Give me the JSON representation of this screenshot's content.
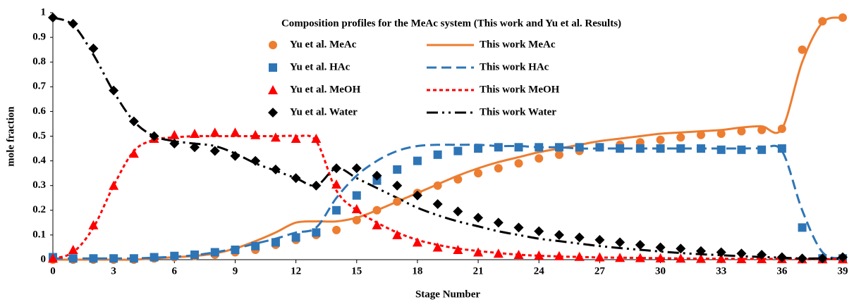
{
  "chart_data": {
    "type": "line",
    "title": "Composition profiles for the MeAc system (This work and Yu et al. Results)",
    "xlabel": "Stage Number",
    "ylabel": "mole fraction",
    "x": [
      0,
      1,
      2,
      3,
      4,
      5,
      6,
      7,
      8,
      9,
      10,
      11,
      12,
      13,
      14,
      15,
      16,
      17,
      18,
      19,
      20,
      21,
      22,
      23,
      24,
      25,
      26,
      27,
      28,
      29,
      30,
      31,
      32,
      33,
      34,
      35,
      36,
      37,
      38,
      39
    ],
    "xlim": [
      0,
      39
    ],
    "xticks": [
      0,
      3,
      6,
      9,
      12,
      15,
      18,
      21,
      24,
      27,
      30,
      33,
      36,
      39
    ],
    "ylim": [
      0,
      1
    ],
    "yticks": [
      0,
      0.1,
      0.2,
      0.3,
      0.4,
      0.5,
      0.6,
      0.7,
      0.8,
      0.9,
      1
    ],
    "grid": false,
    "legend": "top",
    "series": [
      {
        "name": "Yu et al. MeAc",
        "color": "#ed7d31",
        "style": "circle",
        "values": [
          0,
          0,
          0,
          0,
          0,
          0.005,
          0.01,
          0.015,
          0.02,
          0.03,
          0.04,
          0.06,
          0.08,
          0.1,
          0.12,
          0.16,
          0.2,
          0.235,
          0.27,
          0.3,
          0.325,
          0.35,
          0.37,
          0.39,
          0.41,
          0.425,
          0.44,
          0.455,
          0.465,
          0.475,
          0.485,
          0.495,
          0.505,
          0.51,
          0.52,
          0.525,
          0.53,
          0.85,
          0.965,
          0.98
        ]
      },
      {
        "name": "This work MeAc",
        "color": "#ed7d31",
        "style": "solid",
        "values": [
          0,
          0,
          0,
          0,
          0,
          0.005,
          0.01,
          0.015,
          0.025,
          0.045,
          0.075,
          0.11,
          0.15,
          0.155,
          0.155,
          0.17,
          0.2,
          0.235,
          0.27,
          0.305,
          0.34,
          0.37,
          0.395,
          0.415,
          0.435,
          0.45,
          0.465,
          0.48,
          0.49,
          0.5,
          0.51,
          0.515,
          0.52,
          0.525,
          0.535,
          0.54,
          0.53,
          0.8,
          0.96,
          0.98
        ]
      },
      {
        "name": "Yu et al. HAc",
        "color": "#2e75b6",
        "style": "square",
        "values": [
          0.01,
          0.005,
          0.005,
          0.005,
          0.005,
          0.01,
          0.015,
          0.02,
          0.03,
          0.04,
          0.055,
          0.07,
          0.09,
          0.11,
          0.2,
          0.26,
          0.32,
          0.365,
          0.4,
          0.425,
          0.44,
          0.45,
          0.455,
          0.455,
          0.455,
          0.455,
          0.455,
          0.455,
          0.45,
          0.45,
          0.45,
          0.45,
          0.45,
          0.445,
          0.445,
          0.445,
          0.45,
          0.13,
          0.005,
          0.005
        ]
      },
      {
        "name": "This work HAc",
        "color": "#2e75b6",
        "style": "dashed",
        "values": [
          0.005,
          0.005,
          0.005,
          0.005,
          0.005,
          0.008,
          0.012,
          0.018,
          0.03,
          0.045,
          0.065,
          0.085,
          0.11,
          0.13,
          0.25,
          0.34,
          0.4,
          0.44,
          0.46,
          0.465,
          0.465,
          0.465,
          0.46,
          0.46,
          0.455,
          0.455,
          0.45,
          0.45,
          0.45,
          0.45,
          0.45,
          0.45,
          0.45,
          0.45,
          0.45,
          0.45,
          0.44,
          0.2,
          0.03,
          0.005
        ]
      },
      {
        "name": "Yu et al. MeOH",
        "color": "#ff0000",
        "style": "triangle",
        "values": [
          0.005,
          0.04,
          0.14,
          0.3,
          0.43,
          0.49,
          0.505,
          0.51,
          0.515,
          0.515,
          0.505,
          0.495,
          0.49,
          0.49,
          0.305,
          0.205,
          0.14,
          0.1,
          0.07,
          0.05,
          0.04,
          0.03,
          0.025,
          0.02,
          0.017,
          0.015,
          0.012,
          0.01,
          0.008,
          0.007,
          0.006,
          0.005,
          0.004,
          0.004,
          0.003,
          0.003,
          0.003,
          0.002,
          0.002,
          0.002
        ]
      },
      {
        "name": "This work MeOH",
        "color": "#ff0000",
        "style": "dotted",
        "values": [
          0.005,
          0.03,
          0.13,
          0.3,
          0.44,
          0.485,
          0.495,
          0.5,
          0.5,
          0.5,
          0.5,
          0.5,
          0.5,
          0.48,
          0.28,
          0.2,
          0.15,
          0.11,
          0.08,
          0.06,
          0.045,
          0.035,
          0.027,
          0.02,
          0.016,
          0.013,
          0.011,
          0.009,
          0.008,
          0.007,
          0.006,
          0.005,
          0.004,
          0.004,
          0.003,
          0.003,
          0.003,
          0.002,
          0.002,
          0.002
        ]
      },
      {
        "name": "Yu et al. Water",
        "color": "#000000",
        "style": "diamond",
        "values": [
          0.98,
          0.955,
          0.855,
          0.685,
          0.56,
          0.5,
          0.47,
          0.455,
          0.44,
          0.42,
          0.4,
          0.365,
          0.33,
          0.3,
          0.37,
          0.37,
          0.34,
          0.3,
          0.26,
          0.225,
          0.195,
          0.17,
          0.15,
          0.13,
          0.115,
          0.1,
          0.09,
          0.08,
          0.07,
          0.06,
          0.05,
          0.045,
          0.035,
          0.03,
          0.025,
          0.02,
          0.01,
          0.005,
          0.005,
          0.01
        ]
      },
      {
        "name": "This work Water",
        "color": "#000000",
        "style": "dashdot",
        "values": [
          0.98,
          0.95,
          0.83,
          0.68,
          0.56,
          0.5,
          0.48,
          0.47,
          0.46,
          0.43,
          0.39,
          0.36,
          0.33,
          0.3,
          0.37,
          0.33,
          0.29,
          0.25,
          0.21,
          0.18,
          0.155,
          0.135,
          0.115,
          0.1,
          0.085,
          0.075,
          0.065,
          0.055,
          0.047,
          0.04,
          0.033,
          0.027,
          0.022,
          0.018,
          0.014,
          0.011,
          0.008,
          0.005,
          0.005,
          0.005
        ]
      }
    ]
  }
}
